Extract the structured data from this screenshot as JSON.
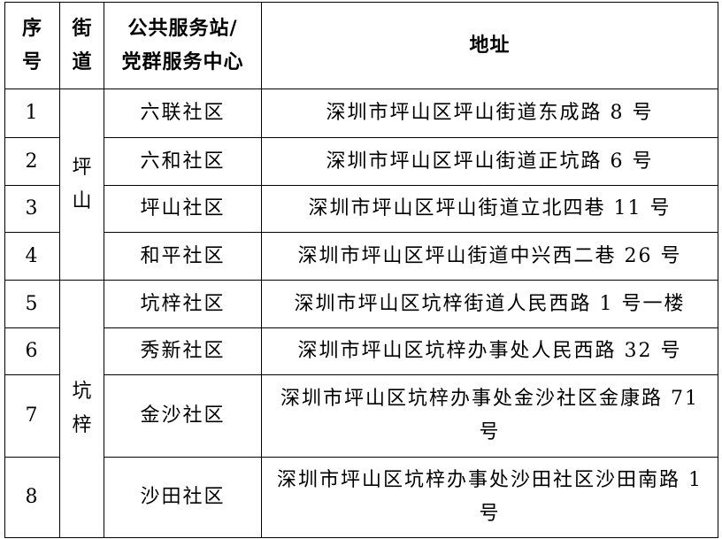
{
  "headers": {
    "no": "序\n号",
    "no_lines": [
      "序",
      "号"
    ],
    "street_lines": [
      "街",
      "道"
    ],
    "station_lines": [
      "公共服务站/",
      "党群服务中心"
    ],
    "address": "地址"
  },
  "streets": [
    {
      "name_lines": [
        "坪",
        "山"
      ]
    },
    {
      "name_lines": [
        "坑",
        "梓"
      ]
    }
  ],
  "rows": [
    {
      "no": "1",
      "station": "六联社区",
      "address": "深圳市坪山区坪山街道东成路 8 号"
    },
    {
      "no": "2",
      "station": "六和社区",
      "address": "深圳市坪山区坪山街道正坑路 6 号"
    },
    {
      "no": "3",
      "station": "坪山社区",
      "address": "深圳市坪山区坪山街道立北四巷 11 号"
    },
    {
      "no": "4",
      "station": "和平社区",
      "address": "深圳市坪山区坪山街道中兴西二巷 26 号"
    },
    {
      "no": "5",
      "station": "坑梓社区",
      "address": "深圳市坪山区坑梓街道人民西路 1 号一楼"
    },
    {
      "no": "6",
      "station": "秀新社区",
      "address": "深圳市坪山区坑梓办事处人民西路 32 号"
    },
    {
      "no": "7",
      "station": "金沙社区",
      "address": "深圳市坪山区坑梓办事处金沙社区金康路 71 号"
    },
    {
      "no": "8",
      "station": "沙田社区",
      "address": "深圳市坪山区坑梓办事处沙田社区沙田南路 1 号"
    }
  ]
}
